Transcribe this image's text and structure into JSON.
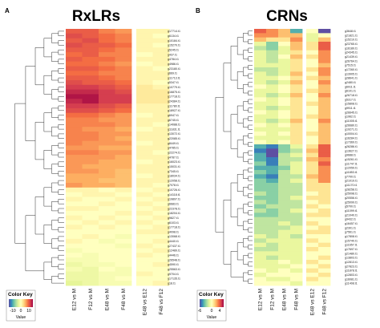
{
  "chart_data": [
    {
      "type": "heatmap",
      "panel": "A",
      "title": "RxLRs",
      "columns": [
        "E12 vs M",
        "F12 vs M",
        "E48 vs M",
        "F48 vs M",
        "E48 vs E12",
        "F48 vs F12"
      ],
      "rows": [
        "g17714.t1",
        "g6134.t1",
        "g10184.t1",
        "g15270.t1",
        "g5245.t1",
        "g437.t1",
        "g4784.t1",
        "g4986.t1",
        "g23180.t1",
        "g669.t1",
        "g11713.t1",
        "g5347.t1",
        "g10779.t1",
        "g16875.t1",
        "g17718.t1",
        "g24384.t1",
        "g11780.t1",
        "g18927.t1",
        "g6947.t1",
        "g6745.t1",
        "g14088.t1",
        "g11831.t1",
        "g13072.t1",
        "g22085.t1",
        "g8449.t1",
        "g4785.t1",
        "g22274.t1",
        "g4787.t1",
        "g16023.t1",
        "g15031.t1",
        "g7345.t1",
        "g18034.t1",
        "g12058.t1",
        "g7078.t1",
        "g10726.t1",
        "g14118.t1",
        "g19897.t1",
        "g6683.t1",
        "g22378.t1",
        "g18204.t1",
        "g9827.t1",
        "g6103.t1",
        "g17718.t1",
        "g4098.t1",
        "g13068.t1",
        "g4440.t1",
        "g27437.t1",
        "g12489.t1",
        "g4446.t1",
        "g26548.t1",
        "g4590.t1",
        "g25563.t1",
        "g9704.t1",
        "g17135.t1",
        "g18.t1"
      ],
      "values": [
        [
          10,
          10,
          8,
          7,
          1,
          1
        ],
        [
          11,
          10,
          9,
          8,
          1,
          0
        ],
        [
          10,
          11,
          9,
          8,
          1,
          1
        ],
        [
          11,
          10,
          10,
          9,
          1,
          0
        ],
        [
          10,
          10,
          9,
          8,
          1,
          1
        ],
        [
          9,
          10,
          8,
          8,
          0,
          1
        ],
        [
          10,
          9,
          9,
          8,
          1,
          1
        ],
        [
          9,
          9,
          8,
          7,
          0,
          1
        ],
        [
          10,
          10,
          9,
          8,
          1,
          0
        ],
        [
          9,
          9,
          8,
          8,
          1,
          1
        ],
        [
          10,
          10,
          9,
          8,
          1,
          1
        ],
        [
          11,
          10,
          10,
          9,
          1,
          0
        ],
        [
          12,
          12,
          11,
          10,
          2,
          1
        ],
        [
          13,
          13,
          12,
          11,
          2,
          2
        ],
        [
          14,
          14,
          12,
          12,
          2,
          2
        ],
        [
          13,
          14,
          12,
          12,
          2,
          2
        ],
        [
          12,
          12,
          11,
          10,
          1,
          1
        ],
        [
          11,
          11,
          10,
          9,
          1,
          1
        ],
        [
          9,
          9,
          8,
          7,
          0,
          1
        ],
        [
          8,
          8,
          7,
          7,
          1,
          1
        ],
        [
          8,
          8,
          8,
          7,
          1,
          0
        ],
        [
          8,
          7,
          7,
          6,
          0,
          1
        ],
        [
          8,
          8,
          7,
          7,
          1,
          1
        ],
        [
          8,
          8,
          7,
          6,
          1,
          1
        ],
        [
          8,
          7,
          7,
          7,
          0,
          1
        ],
        [
          7,
          7,
          6,
          6,
          1,
          1
        ],
        [
          8,
          8,
          7,
          7,
          1,
          0
        ],
        [
          7,
          7,
          7,
          6,
          1,
          1
        ],
        [
          7,
          7,
          6,
          6,
          0,
          1
        ],
        [
          7,
          6,
          6,
          6,
          1,
          1
        ],
        [
          7,
          7,
          6,
          5,
          1,
          1
        ],
        [
          6,
          6,
          6,
          5,
          0,
          1
        ],
        [
          6,
          6,
          5,
          5,
          1,
          1
        ],
        [
          7,
          6,
          6,
          5,
          1,
          0
        ],
        [
          1,
          1,
          0,
          1,
          0,
          1
        ],
        [
          0,
          1,
          1,
          0,
          1,
          0
        ],
        [
          1,
          0,
          0,
          1,
          0,
          1
        ],
        [
          0,
          0,
          1,
          0,
          1,
          0
        ],
        [
          1,
          1,
          0,
          0,
          0,
          1
        ],
        [
          0,
          0,
          0,
          1,
          1,
          0
        ],
        [
          1,
          0,
          1,
          0,
          0,
          1
        ],
        [
          0,
          1,
          0,
          1,
          1,
          0
        ],
        [
          1,
          0,
          1,
          0,
          0,
          1
        ],
        [
          0,
          0,
          0,
          0,
          1,
          1
        ],
        [
          0,
          1,
          0,
          -1,
          0,
          0
        ],
        [
          1,
          0,
          -1,
          0,
          0,
          1
        ],
        [
          0,
          0,
          0,
          -1,
          1,
          0
        ],
        [
          -1,
          0,
          0,
          0,
          0,
          1
        ],
        [
          0,
          -1,
          0,
          0,
          1,
          0
        ],
        [
          -1,
          -1,
          0,
          0,
          0,
          0
        ],
        [
          -2,
          -1,
          -1,
          0,
          0,
          1
        ],
        [
          -1,
          -2,
          0,
          -1,
          0,
          0
        ],
        [
          -2,
          -2,
          -1,
          -1,
          1,
          0
        ],
        [
          -2,
          -2,
          -1,
          0,
          0,
          0
        ],
        [
          -3,
          -2,
          -1,
          -1,
          0,
          1
        ]
      ],
      "color_key": {
        "title": "Color Key",
        "label": "Value",
        "ticks": [
          -10,
          0,
          10
        ],
        "range": [
          -15,
          15
        ],
        "colors": [
          "#5e4fa2",
          "#3288bd",
          "#66c2a5",
          "#abdda4",
          "#e6f598",
          "#ffffbf",
          "#fee08b",
          "#fdae61",
          "#f46d43",
          "#d53e4f",
          "#9e0142"
        ]
      }
    },
    {
      "type": "heatmap",
      "panel": "B",
      "title": "CRNs",
      "columns": [
        "E12 vs M",
        "F12 vs M",
        "E48 vs M",
        "F48 vs M",
        "E48 vs E12",
        "F48 vs F12"
      ],
      "rows": [
        "g3648.t1",
        "g21821.t1",
        "g15210.t1",
        "g23765.t1",
        "g16189.t1",
        "g24345.t1",
        "g21439.t1",
        "g26764.t1",
        "g7515.t1",
        "g17260.t1",
        "g13905.t1",
        "g28641.t1",
        "g2480.t1",
        "g6911.t1",
        "g6101.t1",
        "g26718.t1",
        "g5317.t1",
        "g15808.t1",
        "g9911.t1",
        "g26645.t1",
        "g1962.t1",
        "g11005.t1",
        "g26680.t1",
        "g19271.t1",
        "g10004.t1",
        "g16284.t1",
        "g17369.t1",
        "g26286.t1",
        "g13627.t1",
        "g9688.t1",
        "g15261.t1",
        "g11747.t1",
        "g12059.t1",
        "g11853.t1",
        "g7700.t1",
        "g21019.t1",
        "g11170.t1",
        "g28258.t1",
        "g25098.t1",
        "g20556.t1",
        "g25099.t1",
        "g5700.t1",
        "g11099.t1",
        "g21040.t1",
        "g9432.t1",
        "g16457.t1",
        "g2301.t1",
        "g7561.t1",
        "g17808.t1",
        "g15740.t1",
        "g11657.t1",
        "g17697.t1",
        "g21480.t1",
        "g13803.t1",
        "g12813.t1",
        "g27823.t1",
        "g11878.t1",
        "g12803.t1",
        "g16081.t1",
        "g11408.t1"
      ],
      "values": [
        [
          4,
          3,
          2,
          -4,
          0,
          -6
        ],
        [
          3,
          3,
          2,
          2,
          -1,
          0
        ],
        [
          2,
          1,
          1,
          3,
          -1,
          2
        ],
        [
          -1,
          -3,
          0,
          2,
          1,
          4
        ],
        [
          -2,
          -3,
          -1,
          2,
          1,
          4
        ],
        [
          -1,
          -2,
          -1,
          1,
          0,
          3
        ],
        [
          -1,
          -2,
          0,
          2,
          1,
          3
        ],
        [
          -1,
          -2,
          -1,
          1,
          0,
          3
        ],
        [
          -1,
          -1,
          -1,
          1,
          0,
          2
        ],
        [
          -2,
          -2,
          -1,
          1,
          1,
          3
        ],
        [
          -1,
          -2,
          -1,
          2,
          0,
          3
        ],
        [
          -1,
          -1,
          0,
          1,
          1,
          2
        ],
        [
          -1,
          -2,
          -1,
          2,
          0,
          3
        ],
        [
          0,
          -1,
          0,
          1,
          0,
          2
        ],
        [
          -1,
          -1,
          0,
          1,
          1,
          2
        ],
        [
          -1,
          -2,
          -1,
          2,
          0,
          3
        ],
        [
          0,
          -1,
          0,
          1,
          0,
          2
        ],
        [
          -1,
          -1,
          0,
          1,
          1,
          2
        ],
        [
          -1,
          -2,
          -1,
          1,
          0,
          2
        ],
        [
          0,
          -1,
          0,
          1,
          0,
          2
        ],
        [
          -1,
          -1,
          0,
          1,
          1,
          2
        ],
        [
          -1,
          -2,
          -1,
          2,
          0,
          3
        ],
        [
          0,
          -1,
          0,
          1,
          0,
          2
        ],
        [
          -1,
          -1,
          -1,
          1,
          0,
          2
        ],
        [
          0,
          -1,
          0,
          1,
          1,
          2
        ],
        [
          -1,
          -1,
          -1,
          1,
          0,
          2
        ],
        [
          0,
          -1,
          0,
          1,
          0,
          2
        ],
        [
          -4,
          -5,
          -3,
          -1,
          1,
          4
        ],
        [
          -5,
          -6,
          -3,
          -2,
          2,
          4
        ],
        [
          -4,
          -6,
          -2,
          -1,
          1,
          4
        ],
        [
          -4,
          -5,
          -2,
          -2,
          2,
          3
        ],
        [
          -3,
          -5,
          -2,
          -1,
          1,
          4
        ],
        [
          -4,
          -4,
          -3,
          -1,
          1,
          3
        ],
        [
          -3,
          -4,
          -2,
          -1,
          1,
          3
        ],
        [
          -4,
          -5,
          -2,
          -2,
          2,
          3
        ],
        [
          -3,
          -4,
          -2,
          -1,
          1,
          3
        ],
        [
          -3,
          -3,
          -2,
          -2,
          1,
          1
        ],
        [
          -3,
          -3,
          -2,
          -2,
          1,
          1
        ],
        [
          -2,
          -3,
          -2,
          -2,
          0,
          1
        ],
        [
          -3,
          -3,
          -2,
          -1,
          1,
          1
        ],
        [
          -2,
          -3,
          -2,
          -2,
          0,
          1
        ],
        [
          -3,
          -2,
          -2,
          -2,
          1,
          0
        ],
        [
          -2,
          -3,
          -2,
          -1,
          0,
          1
        ],
        [
          -3,
          -3,
          -2,
          -2,
          1,
          1
        ],
        [
          -2,
          -2,
          -2,
          -2,
          0,
          0
        ],
        [
          -2,
          -2,
          -1,
          -2,
          1,
          0
        ],
        [
          -2,
          -2,
          -2,
          -1,
          0,
          1
        ],
        [
          -2,
          -2,
          -1,
          -1,
          1,
          1
        ],
        [
          -1,
          -2,
          -1,
          -2,
          0,
          0
        ],
        [
          -2,
          -1,
          -1,
          -1,
          1,
          0
        ],
        [
          -1,
          -2,
          -1,
          -1,
          0,
          1
        ],
        [
          -2,
          -2,
          -1,
          -1,
          1,
          0
        ],
        [
          -1,
          -1,
          -1,
          -1,
          0,
          0
        ],
        [
          -1,
          -2,
          -1,
          -1,
          0,
          1
        ],
        [
          -1,
          -1,
          0,
          -1,
          1,
          0
        ],
        [
          -1,
          -1,
          -1,
          0,
          0,
          1
        ],
        [
          0,
          -1,
          0,
          -1,
          1,
          0
        ],
        [
          -1,
          0,
          0,
          0,
          0,
          1
        ],
        [
          0,
          -1,
          -1,
          0,
          1,
          0
        ],
        [
          0,
          0,
          0,
          -1,
          0,
          0
        ]
      ],
      "color_key": {
        "title": "Color Key",
        "label": "Value",
        "ticks": [
          -6,
          0,
          4
        ],
        "range": [
          -6,
          6
        ],
        "colors": [
          "#5e4fa2",
          "#3288bd",
          "#66c2a5",
          "#abdda4",
          "#e6f598",
          "#ffffbf",
          "#fee08b",
          "#fdae61",
          "#f46d43",
          "#d53e4f",
          "#9e0142"
        ]
      }
    }
  ]
}
